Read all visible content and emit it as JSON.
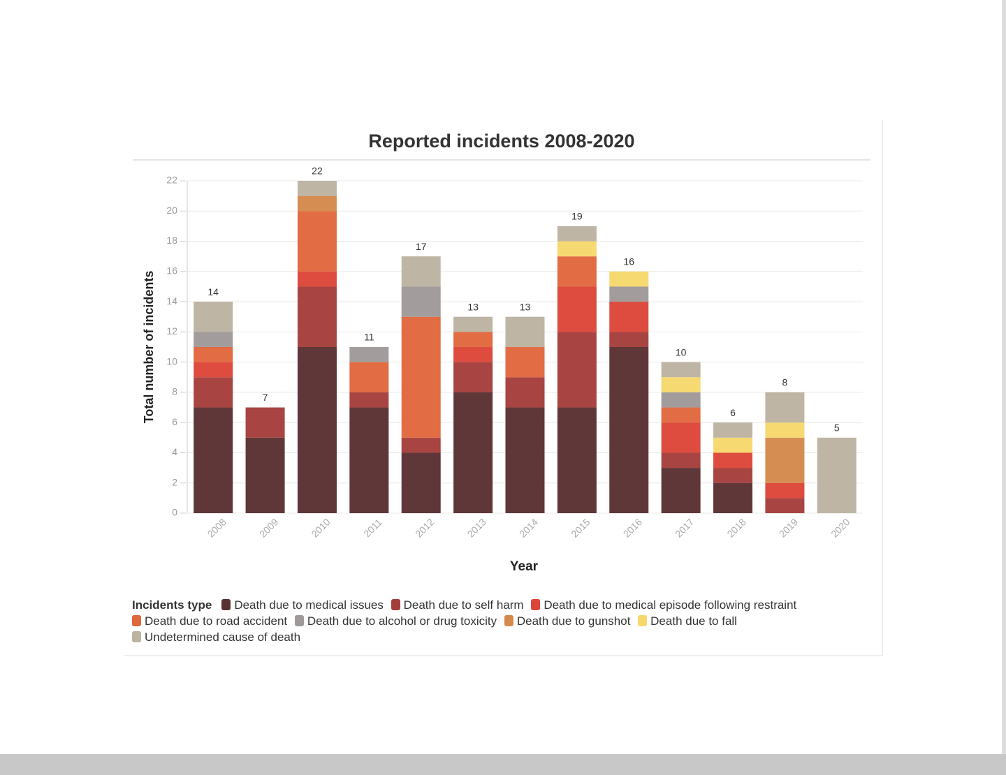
{
  "chart_data": {
    "type": "bar",
    "stacked": true,
    "title": "Reported incidents 2008-2020",
    "x_label": "Year",
    "y_label": "Total number of incidents",
    "legend_title": "Incidents type",
    "categories": [
      "2008",
      "2009",
      "2010",
      "2011",
      "2012",
      "2013",
      "2014",
      "2015",
      "2016",
      "2017",
      "2018",
      "2019",
      "2020"
    ],
    "series": [
      {
        "name": "Death due to medical issues",
        "color": "#5a3132",
        "values": [
          7,
          5,
          11,
          7,
          4,
          8,
          7,
          7,
          11,
          3,
          2,
          0,
          0
        ]
      },
      {
        "name": "Death due to self harm",
        "color": "#a53e3b",
        "values": [
          2,
          2,
          4,
          1,
          1,
          2,
          2,
          5,
          1,
          1,
          1,
          1,
          0
        ]
      },
      {
        "name": "Death due to medical episode following restraint",
        "color": "#dc4638",
        "values": [
          1,
          0,
          1,
          0,
          0,
          1,
          0,
          3,
          2,
          2,
          1,
          1,
          0
        ]
      },
      {
        "name": "Death due to road accident",
        "color": "#e1673d",
        "values": [
          1,
          0,
          4,
          2,
          8,
          1,
          2,
          2,
          0,
          1,
          0,
          0,
          0
        ]
      },
      {
        "name": "Death due to alcohol or drug toxicity",
        "color": "#9f9a99",
        "values": [
          1,
          0,
          0,
          1,
          2,
          0,
          0,
          0,
          1,
          1,
          0,
          0,
          0
        ]
      },
      {
        "name": "Death due to gunshot",
        "color": "#d5894b",
        "values": [
          0,
          0,
          1,
          0,
          0,
          0,
          0,
          0,
          0,
          0,
          0,
          3,
          0
        ]
      },
      {
        "name": "Death due to fall",
        "color": "#f6d86c",
        "values": [
          0,
          0,
          0,
          0,
          0,
          0,
          0,
          1,
          1,
          1,
          1,
          1,
          0
        ]
      },
      {
        "name": "Undetermined cause of death",
        "color": "#bcb3a2",
        "values": [
          2,
          0,
          1,
          0,
          2,
          1,
          2,
          1,
          0,
          1,
          1,
          2,
          5
        ]
      }
    ],
    "totals": [
      14,
      7,
      22,
      11,
      17,
      13,
      13,
      19,
      16,
      10,
      6,
      8,
      5
    ],
    "ylim": [
      0,
      22
    ],
    "yticks": [
      0,
      2,
      4,
      6,
      8,
      10,
      12,
      14,
      16,
      18,
      20,
      22
    ],
    "grid": true
  }
}
